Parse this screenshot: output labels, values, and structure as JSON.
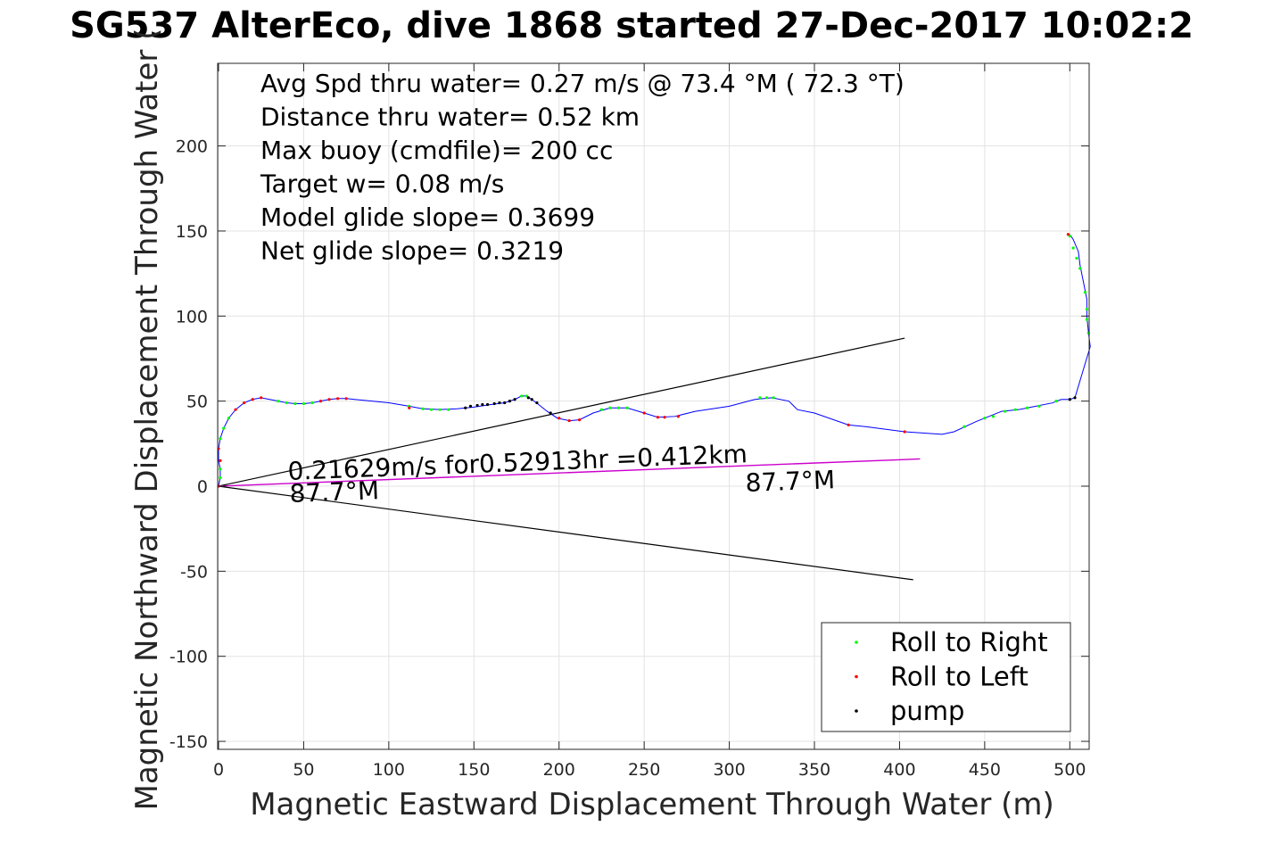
{
  "title": "SG537 AlterEco, dive 1868 started 27-Dec-2017 10:02:2",
  "chart_data": {
    "type": "scatter",
    "title": "SG537 AlterEco, dive 1868 started 27-Dec-2017 10:02:2",
    "xlabel": "Magnetic Eastward Displacement Through Water (m)",
    "ylabel": "Magnetic Northward Displacement Through Water (",
    "xlim": [
      0,
      512
    ],
    "ylim": [
      -155,
      247
    ],
    "xticks": [
      0,
      50,
      100,
      150,
      200,
      250,
      300,
      350,
      400,
      450,
      500
    ],
    "yticks": [
      -150,
      -100,
      -50,
      0,
      50,
      100,
      150,
      200
    ],
    "xtick_labels": [
      "0",
      "50",
      "100",
      "150",
      "200",
      "250",
      "300",
      "350",
      "400",
      "450",
      "500"
    ],
    "ytick_labels": [
      "-150",
      "-100",
      "-50",
      "0",
      "50",
      "100",
      "150",
      "200"
    ],
    "grid": true,
    "legend_position": "bottom-right",
    "stats_text": [
      "Avg Spd thru water=  0.27 m/s @  73.4 °M ( 72.3 °T)",
      "Distance thru water=  0.52 km",
      "Max buoy (cmdfile)= 200 cc",
      "Target w= 0.08 m/s",
      "Model glide slope= 0.3699",
      "Net glide slope= 0.3219"
    ],
    "current_label": "0.21629m/s for0.52913hr =0.412km",
    "heading_label_start": "87.7°M",
    "heading_label_end": "87.7°M",
    "track": [
      [
        0,
        0
      ],
      [
        1,
        5
      ],
      [
        1,
        10
      ],
      [
        0,
        15
      ],
      [
        0,
        22
      ],
      [
        1,
        28
      ],
      [
        3,
        34
      ],
      [
        6,
        40
      ],
      [
        10,
        45
      ],
      [
        15,
        49
      ],
      [
        20,
        51
      ],
      [
        25,
        52
      ],
      [
        30,
        51
      ],
      [
        35,
        50
      ],
      [
        40,
        49
      ],
      [
        45,
        48.5
      ],
      [
        50,
        48.5
      ],
      [
        55,
        49
      ],
      [
        60,
        50
      ],
      [
        65,
        51
      ],
      [
        70,
        51.5
      ],
      [
        75,
        51.5
      ],
      [
        80,
        51
      ],
      [
        90,
        50
      ],
      [
        100,
        49
      ],
      [
        112,
        47
      ],
      [
        120,
        45.5
      ],
      [
        130,
        45
      ],
      [
        140,
        45.5
      ],
      [
        150,
        46.5
      ],
      [
        160,
        48
      ],
      [
        168,
        49
      ],
      [
        174,
        51
      ],
      [
        178,
        53
      ],
      [
        181,
        53
      ],
      [
        184,
        51
      ],
      [
        188,
        48
      ],
      [
        193,
        44
      ],
      [
        199,
        40
      ],
      [
        206,
        38.5
      ],
      [
        212,
        39
      ],
      [
        220,
        43
      ],
      [
        230,
        46
      ],
      [
        240,
        46
      ],
      [
        250,
        43
      ],
      [
        258,
        40.5
      ],
      [
        268,
        41
      ],
      [
        280,
        44
      ],
      [
        300,
        47
      ],
      [
        315,
        51
      ],
      [
        325,
        52
      ],
      [
        335,
        50
      ],
      [
        340,
        45
      ],
      [
        350,
        43
      ],
      [
        370,
        36
      ],
      [
        380,
        35
      ],
      [
        403,
        32
      ],
      [
        425,
        30.5
      ],
      [
        432,
        32
      ],
      [
        445,
        38
      ],
      [
        460,
        44
      ],
      [
        470,
        45
      ],
      [
        480,
        47
      ],
      [
        490,
        49
      ],
      [
        495,
        51
      ],
      [
        500,
        51
      ],
      [
        503,
        52
      ],
      [
        512,
        82
      ],
      [
        511,
        90
      ],
      [
        510,
        100
      ],
      [
        510,
        110
      ],
      [
        508,
        120
      ],
      [
        506,
        130
      ],
      [
        505,
        138
      ],
      [
        502,
        145
      ],
      [
        500,
        148
      ]
    ],
    "roll_right": [
      [
        1,
        5
      ],
      [
        1,
        10
      ],
      [
        1,
        28
      ],
      [
        3,
        34
      ],
      [
        6,
        40
      ],
      [
        35,
        50
      ],
      [
        40,
        49
      ],
      [
        45,
        48.5
      ],
      [
        50,
        48.5
      ],
      [
        55,
        49
      ],
      [
        112,
        47
      ],
      [
        120,
        45.5
      ],
      [
        125,
        45
      ],
      [
        130,
        45
      ],
      [
        135,
        45
      ],
      [
        178,
        53
      ],
      [
        181,
        53
      ],
      [
        225,
        45
      ],
      [
        230,
        46
      ],
      [
        235,
        46
      ],
      [
        240,
        46
      ],
      [
        318,
        52
      ],
      [
        322,
        52
      ],
      [
        326,
        52
      ],
      [
        438,
        35
      ],
      [
        450,
        40
      ],
      [
        455,
        41
      ],
      [
        462,
        44
      ],
      [
        468,
        45
      ],
      [
        475,
        46
      ],
      [
        482,
        47
      ],
      [
        492,
        50
      ],
      [
        500,
        147
      ],
      [
        502,
        140
      ],
      [
        504,
        134
      ],
      [
        506,
        128
      ],
      [
        509,
        114
      ],
      [
        510,
        104
      ],
      [
        510,
        98
      ],
      [
        511,
        90
      ]
    ],
    "roll_left": [
      [
        0,
        0
      ],
      [
        1,
        15
      ],
      [
        0,
        22
      ],
      [
        10,
        45
      ],
      [
        15,
        49
      ],
      [
        20,
        51
      ],
      [
        25,
        52
      ],
      [
        60,
        50
      ],
      [
        65,
        51
      ],
      [
        70,
        51.5
      ],
      [
        75,
        51.5
      ],
      [
        112,
        46
      ],
      [
        200,
        40
      ],
      [
        206,
        38.5
      ],
      [
        212,
        39
      ],
      [
        250,
        43
      ],
      [
        258,
        40.5
      ],
      [
        262,
        40.5
      ],
      [
        270,
        41
      ],
      [
        370,
        36
      ],
      [
        403,
        32
      ],
      [
        499,
        148
      ]
    ],
    "pump": [
      [
        145,
        46
      ],
      [
        148,
        47
      ],
      [
        152,
        47.5
      ],
      [
        155,
        48
      ],
      [
        158,
        48
      ],
      [
        162,
        48.5
      ],
      [
        165,
        49
      ],
      [
        168,
        49
      ],
      [
        171,
        50
      ],
      [
        174,
        51
      ],
      [
        182,
        52
      ],
      [
        184,
        51
      ],
      [
        187,
        49
      ],
      [
        195,
        43
      ],
      [
        500,
        51
      ],
      [
        503,
        52
      ]
    ],
    "lines": {
      "upper_cone": [
        [
          0,
          0
        ],
        [
          403,
          87
        ]
      ],
      "lower_cone": [
        [
          0,
          0
        ],
        [
          408,
          -55
        ]
      ],
      "current": [
        [
          0,
          0
        ],
        [
          412,
          16
        ]
      ]
    },
    "legend": [
      {
        "label": "Roll to Right",
        "color": "#00ff00"
      },
      {
        "label": "Roll to Left",
        "color": "#ff0000"
      },
      {
        "label": "pump",
        "color": "#000000"
      }
    ],
    "colors": {
      "track": "#0000ff",
      "current": "#cc00cc",
      "cone": "#000000",
      "grid": "#e3e3e3"
    }
  }
}
